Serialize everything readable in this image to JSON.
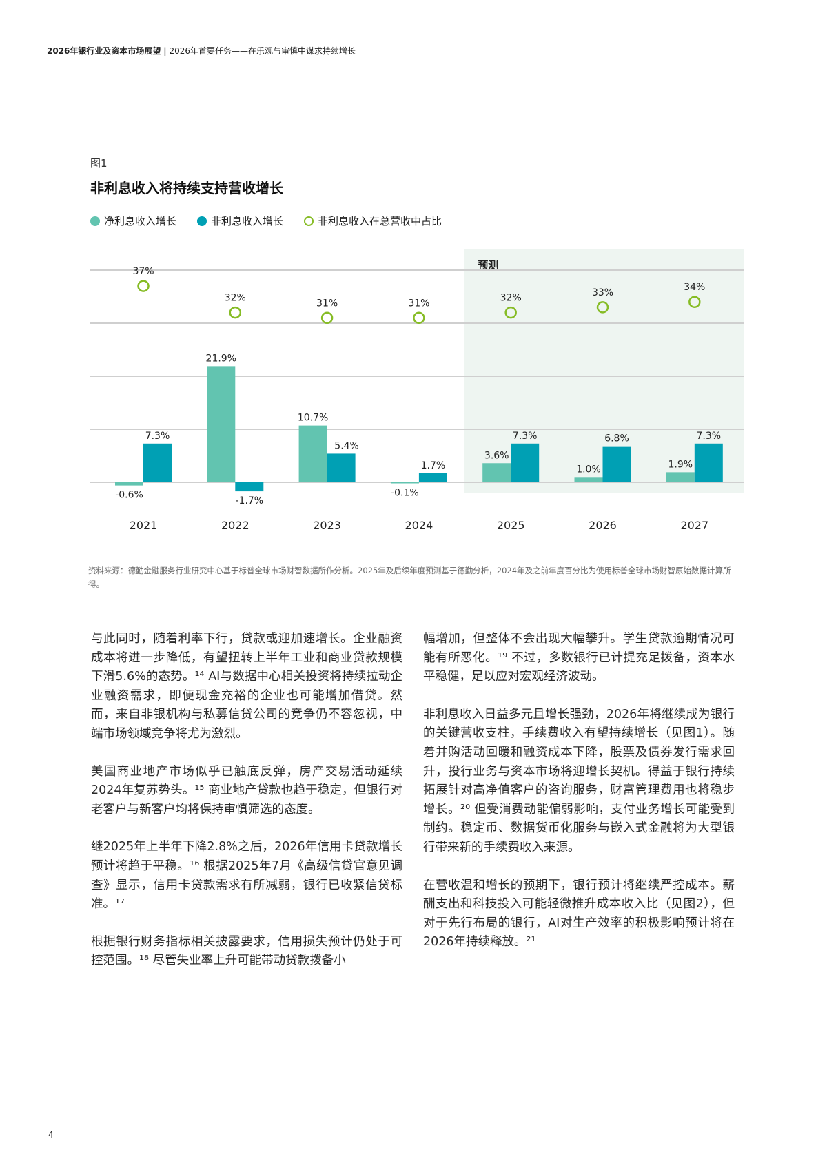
{
  "header": {
    "report_title": "2026年银行业及资本市场展望",
    "separator": "|",
    "section_title": "2026年首要任务——在乐观与审慎中谋求持续增长"
  },
  "figure": {
    "label": "图1",
    "title": "非利息收入将持续支持营收增长",
    "legend": [
      {
        "label": "净利息收入增长",
        "color": "#62c4b0",
        "style": "filled"
      },
      {
        "label": "非利息收入增长",
        "color": "#00a0b4",
        "style": "filled"
      },
      {
        "label": "非利息收入在总营收中占比",
        "color": "#86bc25",
        "style": "outline"
      }
    ],
    "forecast_label": "预测",
    "source": "资料来源：德勤金融服务行业研究中心基于标普全球市场财智数据所作分析。2025年及后续年度预测基于德勤分析，2024年及之前年度百分比为使用标普全球市场财智原始数据计算所得。"
  },
  "chart_data": {
    "type": "bar",
    "title": "非利息收入将持续支持营收增长",
    "categories": [
      "2021",
      "2022",
      "2023",
      "2024",
      "2025",
      "2026",
      "2027"
    ],
    "forecast_from": "2025",
    "ylim": [
      -2,
      40
    ],
    "grid": true,
    "gridlines": [
      0,
      10,
      20,
      30,
      40
    ],
    "legend_position": "top-left",
    "series": [
      {
        "name": "净利息收入增长",
        "type": "bar",
        "color": "#62c4b0",
        "values": [
          -0.6,
          21.9,
          10.7,
          -0.1,
          3.6,
          1.0,
          1.9
        ],
        "labels": [
          "-0.6%",
          "21.9%",
          "10.7%",
          "-0.1%",
          "3.6%",
          "1.0%",
          "1.9%"
        ]
      },
      {
        "name": "非利息收入增长",
        "type": "bar",
        "color": "#00a0b4",
        "values": [
          7.3,
          -1.7,
          5.4,
          1.7,
          7.3,
          6.8,
          7.3
        ],
        "labels": [
          "7.3%",
          "-1.7%",
          "5.4%",
          "1.7%",
          "7.3%",
          "6.8%",
          "7.3%"
        ]
      },
      {
        "name": "非利息收入在总营收中占比",
        "type": "marker",
        "color": "#86bc25",
        "values": [
          37,
          32,
          31,
          31,
          32,
          33,
          34
        ],
        "labels": [
          "37%",
          "32%",
          "31%",
          "31%",
          "32%",
          "33%",
          "34%"
        ]
      }
    ]
  },
  "body": {
    "left": [
      "与此同时，随着利率下行，贷款或迎加速增长。企业融资成本将进一步降低，有望扭转上半年工业和商业贷款规模下滑5.6%的态势。¹⁴ AI与数据中心相关投资将持续拉动企业融资需求，即便现金充裕的企业也可能增加借贷。然而，来自非银机构与私募信贷公司的竞争仍不容忽视，中端市场领域竞争将尤为激烈。",
      "美国商业地产市场似乎已触底反弹，房产交易活动延续2024年复苏势头。¹⁵ 商业地产贷款也趋于稳定，但银行对老客户与新客户均将保持审慎筛选的态度。",
      "继2025年上半年下降2.8%之后，2026年信用卡贷款增长预计将趋于平稳。¹⁶ 根据2025年7月《高级信贷官意见调查》显示，信用卡贷款需求有所减弱，银行已收紧信贷标准。¹⁷",
      "根据银行财务指标相关披露要求，信用损失预计仍处于可控范围。¹⁸ 尽管失业率上升可能带动贷款拨备小"
    ],
    "right": [
      "幅增加，但整体不会出现大幅攀升。学生贷款逾期情况可能有所恶化。¹⁹ 不过，多数银行已计提充足拨备，资本水平稳健，足以应对宏观经济波动。",
      "非利息收入日益多元且增长强劲，2026年将继续成为银行的关键营收支柱，手续费收入有望持续增长（见图1）。随着并购活动回暖和融资成本下降，股票及债券发行需求回升，投行业务与资本市场将迎增长契机。得益于银行持续拓展针对高净值客户的咨询服务，财富管理费用也将稳步增长。²⁰ 但受消费动能偏弱影响，支付业务增长可能受到制约。稳定币、数据货币化服务与嵌入式金融将为大型银行带来新的手续费收入来源。",
      "在营收温和增长的预期下，银行预计将继续严控成本。薪酬支出和科技投入可能轻微推升成本收入比（见图2），但对于先行布局的银行，AI对生产效率的积极影响预计将在2026年持续释放。²¹"
    ]
  },
  "page_number": "4"
}
